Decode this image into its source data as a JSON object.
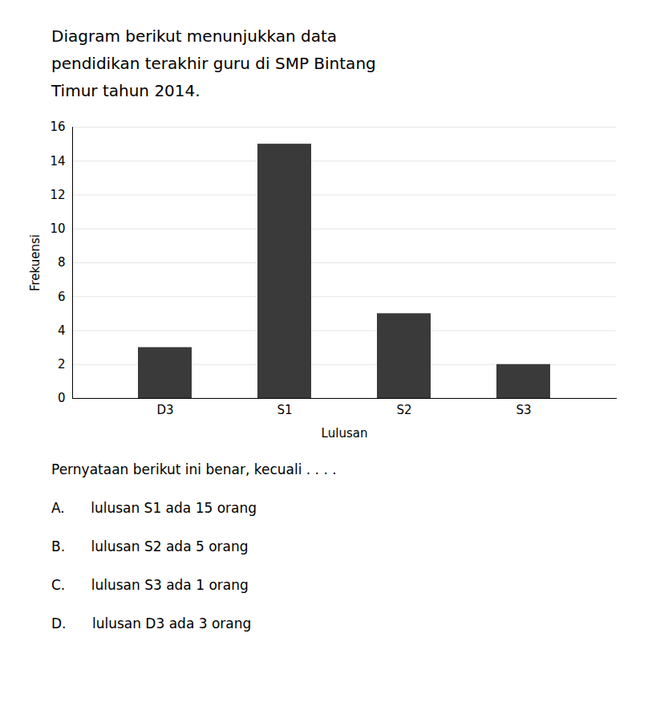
{
  "chart_data": {
    "type": "bar",
    "title": [
      "Diagram berikut menunjukkan data",
      "pendidikan terakhir guru di SMP Bintang",
      "Timur tahun 2014."
    ],
    "categories": [
      "D3",
      "S1",
      "S2",
      "S3"
    ],
    "values": [
      3,
      15,
      5,
      2
    ],
    "color": "#3a3a3a",
    "xlabel": "Lulusan",
    "ylabel": "Frekuensi",
    "ylim": [
      0,
      16
    ],
    "yticks": [
      0,
      2,
      4,
      6,
      8,
      10,
      12,
      14,
      16
    ],
    "grid": true,
    "annotations": [
      "Pernyataan berikut ini benar, kecuali . . . .",
      "A.      lulusan S1 ada 15 orang",
      "B.      lulusan S2 ada 5 orang",
      "C.      lulusan S3 ada 1 orang",
      "D.      lulusan D3 ada 3 orang"
    ]
  }
}
